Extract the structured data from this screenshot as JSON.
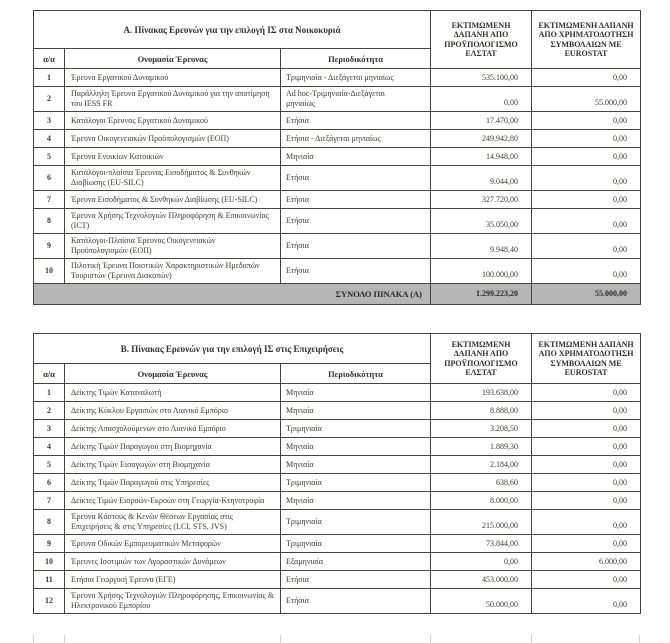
{
  "colors": {
    "text": "#3f3a35",
    "heading": "#34302b",
    "border": "#474440",
    "total_bg": "#b5b5b5",
    "total_text": "#272b31",
    "paper": "#ffffff"
  },
  "columns": {
    "num": "α/α",
    "name": "Ονομασία Έρευνας",
    "period": "Περιοδικότητα",
    "elstat": "ΕΚΤΙΜΩΜΕΝΗ ΔΑΠΑΝΗ ΑΠΟ ΠΡΟΫΠΟΛΟΓΙΣΜΟ ΕΛΣΤΑΤ",
    "eurostat": "ΕΚΤΙΜΩΜΕΝΗ ΔΑΠΑΝΗ ΑΠΟ ΧΡΗΜΑΤΟΔΟΤΗΣΗ ΣΥΜΒΟΛΑΙΩΝ ΜΕ EUROSTAT"
  },
  "table_a": {
    "title": "Α. Πίνακας Ερευνών για την επιλογή ΙΣ στα Νοικοκυριά",
    "rows": [
      {
        "num": "1",
        "name": "Έρευνα Εργατικού Δυναμικού",
        "period": "Τριμηνιαία - Διεξάγεται μηνιαίως",
        "elstat": "535.100,00",
        "eurostat": "0,00"
      },
      {
        "num": "2",
        "name": "Παράλληλη Έρευνα Εργατικού Δυναμικού για την αποτίμηση του IESS FR",
        "period": "Ad hoc-Τριμηνιαία-Διεξάγεται μηνιαίως",
        "elstat": "0,00",
        "eurostat": "55.000,00"
      },
      {
        "num": "3",
        "name": "Κατάλογοι Έρευνας Εργατικού Δυναμικού",
        "period": "Ετήσια",
        "elstat": "17.470,00",
        "eurostat": "0,00"
      },
      {
        "num": "4",
        "name": "Έρευνα Οικογενειακών Προϋπολογισμών (ΕΟΠ)",
        "period": "Ετήσια - Διεξάγεται μηνιαίως",
        "elstat": "249.942,80",
        "eurostat": "0,00"
      },
      {
        "num": "5",
        "name": "Έρευνα Ενοικίων Κατοικιών",
        "period": "Μηνιαία",
        "elstat": "14.948,00",
        "eurostat": "0,00"
      },
      {
        "num": "6",
        "name": "Κατάλογοι-πλαίσια Έρευνας Εισοδήματος & Συνθηκών Διαβίωσης (EU-SILC)",
        "period": "Ετήσια",
        "elstat": "9.044,00",
        "eurostat": "0,00"
      },
      {
        "num": "7",
        "name": "Έρευνα Εισοδήματος & Συνθηκών Διαβίωσης (EU-SILC)",
        "period": "Ετήσια",
        "elstat": "327.720,00",
        "eurostat": "0,00"
      },
      {
        "num": "8",
        "name": "Έρευνα Χρήσης Τεχνολογιών Πληροφόρηση & Επικοινωνίας (ICT)",
        "period": "Ετήσια",
        "elstat": "35.050,00",
        "eurostat": "0,00"
      },
      {
        "num": "9",
        "name": "Κατάλογοι-Πλαίσια Έρευνας Οικογενειακών Προϋπολογισμών (ΕΟΠ)",
        "period": "Ετήσια",
        "elstat": "9.948,40",
        "eurostat": "0,00"
      },
      {
        "num": "10",
        "name": "Πιλοτική Έρευνα Ποιοτικών Χαρακτηριστικών Ημεδαπών Τουριστών (Έρευνα Διακοπών)",
        "period": "Ετήσια",
        "elstat": "100.000,00",
        "eurostat": "0,00"
      }
    ],
    "total": {
      "label": "ΣΥΝΟΛΟ ΠΙΝΑΚΑ (Α)",
      "elstat": "1.299.223,20",
      "eurostat": "55.000,00"
    }
  },
  "table_b": {
    "title": "Β. Πίνακας Ερευνών για την επιλογή ΙΣ στις Επιχειρήσεις",
    "rows": [
      {
        "num": "1",
        "name": "Δείκτης Τιμών Καταναλωτή",
        "period": "Μηνιαία",
        "elstat": "193.638,00",
        "eurostat": "0,00"
      },
      {
        "num": "2",
        "name": "Δείκτης Κύκλου Εργασιών στο Λιανικό Εμπόριο",
        "period": "Μηνιαία",
        "elstat": "8.888,00",
        "eurostat": "0,00"
      },
      {
        "num": "3",
        "name": "Δείκτης Απασχολούμενων στο Λιανικό Εμπόριο",
        "period": "Τριμηνιαία",
        "elstat": "3.208,50",
        "eurostat": "0,00"
      },
      {
        "num": "4",
        "name": "Δείκτης Τιμών Παραγωγού στη Βιομηχανία",
        "period": "Μηνιαία",
        "elstat": "1.889,30",
        "eurostat": "0,00"
      },
      {
        "num": "5",
        "name": "Δείκτης Τιμών Εισαγωγών στη Βιομηχανία",
        "period": "Μηνιαία",
        "elstat": "2.184,00",
        "eurostat": "0,00"
      },
      {
        "num": "6",
        "name": "Δείκτης Τιμών Παραγωγού στις Υπηρεσίες",
        "period": "Τριμηνιαία",
        "elstat": "638,60",
        "eurostat": "0,00"
      },
      {
        "num": "7",
        "name": "Δείκτες Τιμών Εισροών-Εκροών στη Γεωργία-Κτηνοτροφία",
        "period": "Μηνιαία",
        "elstat": "8.000,00",
        "eurostat": "0,00"
      },
      {
        "num": "8",
        "name": "Έρευνα Κόστους & Κενών Θέσεων Εργασίας στις Επιχειρήσεις & στις Υπηρεσίες (LCI, STS, JVS)",
        "period": "Τριμηνιαία",
        "elstat": "215.000,00",
        "eurostat": "0,00"
      },
      {
        "num": "9",
        "name": "Έρευνα Οδικών Εμπορευματικών Μεταφορών",
        "period": "Τριμηνιαία",
        "elstat": "73.844,00",
        "eurostat": "0,00"
      },
      {
        "num": "10",
        "name": "Έρευνες Ισοτιμιών των Αγοραστικών Δυνάμεων",
        "period": "Εξαμηνιαία",
        "elstat": "0,00",
        "eurostat": "6.000,00"
      },
      {
        "num": "11",
        "name": "Ετήσια Γεωργική Έρευνα (ΕΓΕ)",
        "period": "Ετήσια",
        "elstat": "453.000,00",
        "eurostat": "0,00"
      },
      {
        "num": "12",
        "name": "Έρευνα Χρήσης Τεχνολογιών Πληροφόρησης, Επικοινωνίας & Ηλεκτρονικού Εμπορίου",
        "period": "Ετήσια",
        "elstat": "50.000,00",
        "eurostat": "0,00"
      }
    ]
  }
}
